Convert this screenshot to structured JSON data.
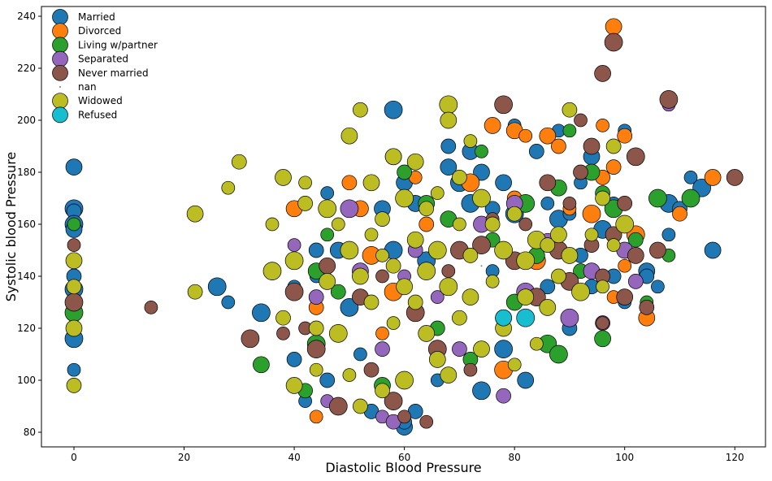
{
  "chart_data": {
    "type": "scatter",
    "title": "",
    "xlabel": "Diastolic Blood Pressure",
    "ylabel": "Systolic blood Pressure",
    "xlim": [
      -5,
      125
    ],
    "ylim": [
      75,
      243
    ],
    "xticks": [
      0,
      20,
      40,
      60,
      80,
      100,
      120
    ],
    "yticks": [
      80,
      100,
      120,
      140,
      160,
      180,
      200,
      220,
      240
    ],
    "grid": false,
    "legend_position": "top-left",
    "series": [
      {
        "name": "Married",
        "color": "#1f77b4",
        "points": [
          [
            0,
            182
          ],
          [
            0,
            166
          ],
          [
            0,
            165
          ],
          [
            0,
            160
          ],
          [
            0,
            158
          ],
          [
            0,
            140
          ],
          [
            0,
            135
          ],
          [
            0,
            116
          ],
          [
            0,
            104
          ],
          [
            26,
            136
          ],
          [
            28,
            130
          ],
          [
            34,
            126
          ],
          [
            40,
            136
          ],
          [
            40,
            108
          ],
          [
            42,
            92
          ],
          [
            44,
            150
          ],
          [
            44,
            140
          ],
          [
            44,
            112
          ],
          [
            46,
            172
          ],
          [
            46,
            100
          ],
          [
            48,
            150
          ],
          [
            50,
            128
          ],
          [
            52,
            110
          ],
          [
            54,
            88
          ],
          [
            56,
            166
          ],
          [
            58,
            204
          ],
          [
            58,
            186
          ],
          [
            58,
            150
          ],
          [
            60,
            82
          ],
          [
            60,
            84
          ],
          [
            60,
            176
          ],
          [
            62,
            88
          ],
          [
            62,
            168
          ],
          [
            64,
            146
          ],
          [
            66,
            100
          ],
          [
            68,
            190
          ],
          [
            68,
            182
          ],
          [
            70,
            176
          ],
          [
            72,
            188
          ],
          [
            72,
            168
          ],
          [
            74,
            180
          ],
          [
            74,
            96
          ],
          [
            76,
            142
          ],
          [
            76,
            166
          ],
          [
            78,
            176
          ],
          [
            78,
            112
          ],
          [
            80,
            198
          ],
          [
            80,
            164
          ],
          [
            82,
            100
          ],
          [
            84,
            188
          ],
          [
            86,
            168
          ],
          [
            86,
            136
          ],
          [
            88,
            196
          ],
          [
            88,
            162
          ],
          [
            90,
            164
          ],
          [
            90,
            120
          ],
          [
            92,
            176
          ],
          [
            92,
            148
          ],
          [
            94,
            186
          ],
          [
            94,
            136
          ],
          [
            96,
            172
          ],
          [
            96,
            158
          ],
          [
            98,
            168
          ],
          [
            98,
            140
          ],
          [
            100,
            196
          ],
          [
            100,
            160
          ],
          [
            100,
            130
          ],
          [
            102,
            156
          ],
          [
            104,
            142
          ],
          [
            104,
            140
          ],
          [
            106,
            136
          ],
          [
            108,
            168
          ],
          [
            108,
            156
          ],
          [
            110,
            166
          ],
          [
            112,
            178
          ],
          [
            114,
            174
          ],
          [
            116,
            150
          ]
        ]
      },
      {
        "name": "Divorced",
        "color": "#ff7f0e",
        "points": [
          [
            40,
            166
          ],
          [
            44,
            128
          ],
          [
            44,
            86
          ],
          [
            50,
            176
          ],
          [
            52,
            166
          ],
          [
            54,
            148
          ],
          [
            56,
            118
          ],
          [
            58,
            134
          ],
          [
            62,
            178
          ],
          [
            64,
            160
          ],
          [
            70,
            150
          ],
          [
            72,
            176
          ],
          [
            76,
            198
          ],
          [
            78,
            104
          ],
          [
            80,
            196
          ],
          [
            80,
            170
          ],
          [
            82,
            194
          ],
          [
            84,
            146
          ],
          [
            86,
            194
          ],
          [
            88,
            190
          ],
          [
            90,
            166
          ],
          [
            94,
            164
          ],
          [
            96,
            198
          ],
          [
            96,
            178
          ],
          [
            98,
            236
          ],
          [
            98,
            182
          ],
          [
            98,
            132
          ],
          [
            100,
            194
          ],
          [
            100,
            144
          ],
          [
            102,
            156
          ],
          [
            104,
            124
          ],
          [
            110,
            164
          ],
          [
            116,
            178
          ]
        ]
      },
      {
        "name": "Living w/partner",
        "color": "#2ca02c",
        "points": [
          [
            0,
            160
          ],
          [
            0,
            126
          ],
          [
            34,
            106
          ],
          [
            42,
            96
          ],
          [
            44,
            142
          ],
          [
            44,
            114
          ],
          [
            46,
            156
          ],
          [
            48,
            134
          ],
          [
            56,
            98
          ],
          [
            60,
            180
          ],
          [
            64,
            168
          ],
          [
            66,
            120
          ],
          [
            68,
            162
          ],
          [
            72,
            108
          ],
          [
            74,
            188
          ],
          [
            76,
            154
          ],
          [
            80,
            130
          ],
          [
            82,
            168
          ],
          [
            84,
            148
          ],
          [
            86,
            114
          ],
          [
            88,
            174
          ],
          [
            88,
            110
          ],
          [
            90,
            196
          ],
          [
            92,
            142
          ],
          [
            94,
            180
          ],
          [
            96,
            172
          ],
          [
            96,
            116
          ],
          [
            98,
            166
          ],
          [
            100,
            132
          ],
          [
            102,
            154
          ],
          [
            104,
            130
          ],
          [
            106,
            170
          ],
          [
            108,
            148
          ],
          [
            112,
            170
          ]
        ]
      },
      {
        "name": "Separated",
        "color": "#9467bd",
        "points": [
          [
            40,
            152
          ],
          [
            44,
            132
          ],
          [
            46,
            92
          ],
          [
            50,
            166
          ],
          [
            52,
            142
          ],
          [
            56,
            112
          ],
          [
            56,
            86
          ],
          [
            58,
            84
          ],
          [
            60,
            140
          ],
          [
            62,
            150
          ],
          [
            66,
            132
          ],
          [
            70,
            112
          ],
          [
            74,
            160
          ],
          [
            78,
            94
          ],
          [
            80,
            168
          ],
          [
            82,
            134
          ],
          [
            86,
            154
          ],
          [
            90,
            124
          ],
          [
            94,
            142
          ],
          [
            96,
            122
          ],
          [
            100,
            150
          ],
          [
            102,
            138
          ],
          [
            108,
            206
          ]
        ]
      },
      {
        "name": "Never married",
        "color": "#8c564b",
        "points": [
          [
            0,
            152
          ],
          [
            0,
            130
          ],
          [
            14,
            128
          ],
          [
            32,
            116
          ],
          [
            38,
            118
          ],
          [
            40,
            134
          ],
          [
            42,
            120
          ],
          [
            44,
            112
          ],
          [
            46,
            144
          ],
          [
            48,
            90
          ],
          [
            52,
            132
          ],
          [
            54,
            104
          ],
          [
            56,
            140
          ],
          [
            58,
            92
          ],
          [
            60,
            86
          ],
          [
            62,
            126
          ],
          [
            64,
            84
          ],
          [
            66,
            112
          ],
          [
            68,
            142
          ],
          [
            70,
            150
          ],
          [
            72,
            104
          ],
          [
            74,
            152
          ],
          [
            76,
            162
          ],
          [
            78,
            206
          ],
          [
            78,
            124
          ],
          [
            80,
            146
          ],
          [
            82,
            160
          ],
          [
            84,
            132
          ],
          [
            86,
            176
          ],
          [
            88,
            150
          ],
          [
            90,
            168
          ],
          [
            90,
            138
          ],
          [
            92,
            200
          ],
          [
            92,
            180
          ],
          [
            94,
            190
          ],
          [
            94,
            152
          ],
          [
            96,
            218
          ],
          [
            96,
            140
          ],
          [
            96,
            122
          ],
          [
            98,
            230
          ],
          [
            98,
            156
          ],
          [
            100,
            168
          ],
          [
            100,
            132
          ],
          [
            102,
            186
          ],
          [
            102,
            148
          ],
          [
            104,
            128
          ],
          [
            106,
            150
          ],
          [
            108,
            208
          ],
          [
            120,
            178
          ]
        ]
      },
      {
        "name": "nan",
        "color": "#7f7f7f",
        "points": [
          [
            62,
            150
          ],
          [
            74,
            144
          ]
        ]
      },
      {
        "name": "Widowed",
        "color": "#bcbd22",
        "points": [
          [
            0,
            146
          ],
          [
            0,
            136
          ],
          [
            0,
            120
          ],
          [
            0,
            98
          ],
          [
            22,
            164
          ],
          [
            22,
            134
          ],
          [
            28,
            174
          ],
          [
            30,
            184
          ],
          [
            36,
            160
          ],
          [
            36,
            142
          ],
          [
            38,
            178
          ],
          [
            38,
            124
          ],
          [
            40,
            98
          ],
          [
            40,
            146
          ],
          [
            42,
            176
          ],
          [
            42,
            168
          ],
          [
            44,
            104
          ],
          [
            44,
            120
          ],
          [
            46,
            138
          ],
          [
            46,
            166
          ],
          [
            48,
            160
          ],
          [
            48,
            118
          ],
          [
            50,
            194
          ],
          [
            50,
            150
          ],
          [
            50,
            102
          ],
          [
            52,
            204
          ],
          [
            52,
            140
          ],
          [
            52,
            90
          ],
          [
            54,
            176
          ],
          [
            54,
            130
          ],
          [
            54,
            156
          ],
          [
            56,
            162
          ],
          [
            56,
            148
          ],
          [
            56,
            96
          ],
          [
            58,
            186
          ],
          [
            58,
            144
          ],
          [
            58,
            122
          ],
          [
            60,
            170
          ],
          [
            60,
            136
          ],
          [
            60,
            100
          ],
          [
            62,
            184
          ],
          [
            62,
            130
          ],
          [
            62,
            154
          ],
          [
            64,
            166
          ],
          [
            64,
            118
          ],
          [
            64,
            142
          ],
          [
            66,
            172
          ],
          [
            66,
            150
          ],
          [
            66,
            108
          ],
          [
            68,
            206
          ],
          [
            68,
            200
          ],
          [
            68,
            136
          ],
          [
            68,
            102
          ],
          [
            70,
            178
          ],
          [
            70,
            160
          ],
          [
            70,
            124
          ],
          [
            72,
            192
          ],
          [
            72,
            148
          ],
          [
            72,
            132
          ],
          [
            74,
            170
          ],
          [
            74,
            112
          ],
          [
            76,
            160
          ],
          [
            76,
            138
          ],
          [
            78,
            150
          ],
          [
            78,
            120
          ],
          [
            80,
            164
          ],
          [
            80,
            106
          ],
          [
            82,
            146
          ],
          [
            82,
            132
          ],
          [
            84,
            154
          ],
          [
            84,
            114
          ],
          [
            86,
            152
          ],
          [
            86,
            128
          ],
          [
            88,
            140
          ],
          [
            88,
            156
          ],
          [
            90,
            204
          ],
          [
            90,
            148
          ],
          [
            92,
            134
          ],
          [
            94,
            156
          ],
          [
            96,
            170
          ],
          [
            96,
            136
          ],
          [
            98,
            190
          ],
          [
            98,
            152
          ],
          [
            100,
            160
          ]
        ]
      },
      {
        "name": "Refused",
        "color": "#17becf",
        "points": [
          [
            78,
            124
          ],
          [
            82,
            124
          ]
        ]
      }
    ]
  }
}
